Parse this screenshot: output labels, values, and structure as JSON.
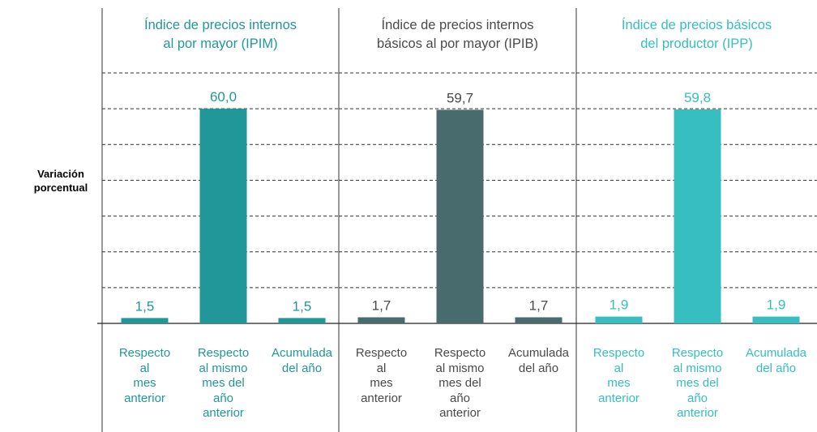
{
  "chart_data": [
    {
      "type": "bar",
      "title": "Índice de precios internos\nal por mayor (IPIM)",
      "ylabel": "Variación\nporcentual",
      "categories": [
        "Respecto\nal\nmes\nanterior",
        "Respecto\nal mismo\nmes del\naño\nanterior",
        "Acumulada\ndel año"
      ],
      "values": [
        1.5,
        60.0,
        1.5
      ],
      "value_labels": [
        "1,5",
        "60,0",
        "1,5"
      ],
      "color": "#21979a",
      "text_color": "#21979a",
      "ylim": [
        0,
        70
      ],
      "yticks": [
        0,
        10,
        20,
        30,
        40,
        50,
        60,
        70
      ],
      "grid": true
    },
    {
      "type": "bar",
      "title": "Índice de precios internos\nbásicos al por mayor (IPIB)",
      "categories": [
        "Respecto\nal\nmes\nanterior",
        "Respecto\nal mismo\nmes del\naño\nanterior",
        "Acumulada\ndel año"
      ],
      "values": [
        1.7,
        59.7,
        1.7
      ],
      "value_labels": [
        "1,7",
        "59,7",
        "1,7"
      ],
      "color": "#486b6e",
      "text_color": "#4a4a4a",
      "ylim": [
        0,
        70
      ],
      "yticks": [
        0,
        10,
        20,
        30,
        40,
        50,
        60,
        70
      ],
      "grid": true
    },
    {
      "type": "bar",
      "title": "Índice de precios básicos\ndel productor (IPP)",
      "categories": [
        "Respecto\nal\nmes\nanterior",
        "Respecto\nal mismo\nmes del\naño\nanterior",
        "Acumulada\ndel año"
      ],
      "values": [
        1.9,
        59.8,
        1.9
      ],
      "value_labels": [
        "1,9",
        "59,8",
        "1,9"
      ],
      "color": "#36bec0",
      "text_color": "#36bec0",
      "ylim": [
        0,
        70
      ],
      "yticks": [
        0,
        10,
        20,
        30,
        40,
        50,
        60,
        70
      ],
      "grid": true
    }
  ]
}
